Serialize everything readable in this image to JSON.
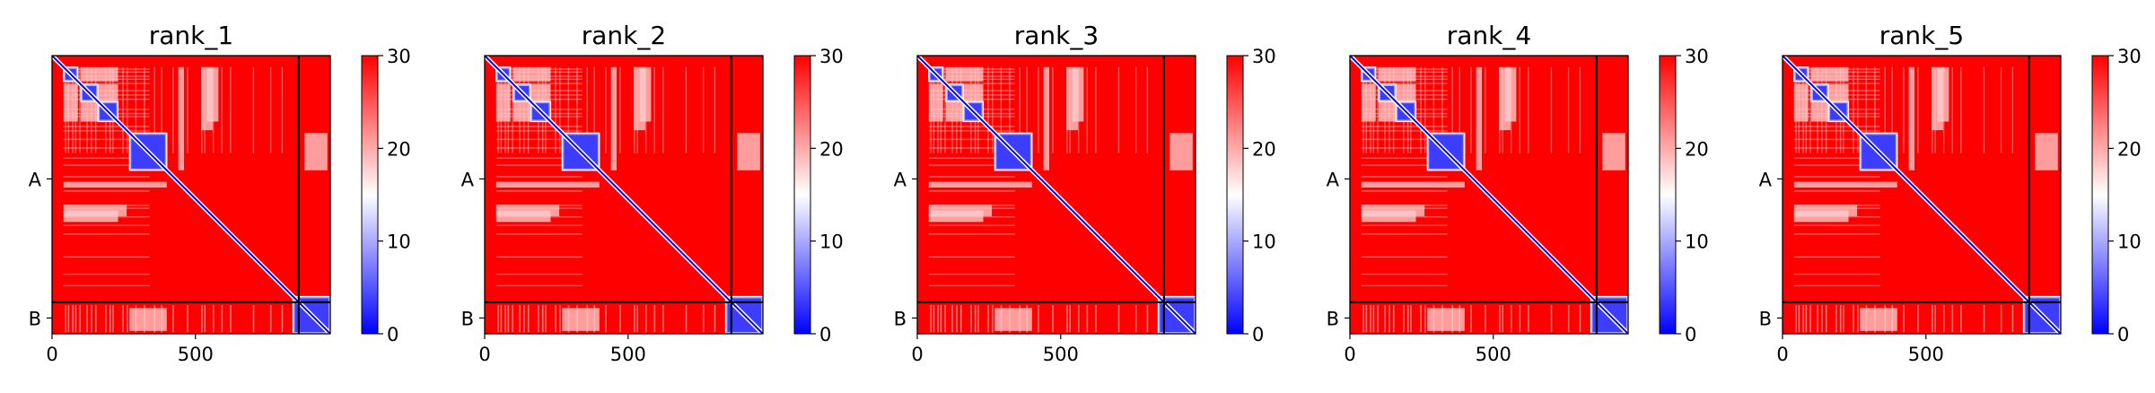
{
  "figure": {
    "layout": "1 row x 5 panels, each a heatmap with its own colorbar"
  },
  "chart_data": [
    {
      "type": "heatmap",
      "title": "rank_1",
      "xticks": [
        0,
        500
      ],
      "yticks": [
        "A",
        "B"
      ],
      "xlim": [
        0,
        970
      ],
      "ylim": [
        970,
        0
      ],
      "chain_boundary": 860,
      "colorbar": {
        "range": [
          0,
          30
        ],
        "ticks": [
          0,
          10,
          20,
          30
        ],
        "colormap": "bwr"
      },
      "blocks": [
        [
          40,
          90
        ],
        [
          100,
          160
        ],
        [
          160,
          230
        ],
        [
          270,
          400
        ],
        [
          840,
          970
        ]
      ]
    },
    {
      "type": "heatmap",
      "title": "rank_2",
      "xticks": [
        0,
        500
      ],
      "yticks": [
        "A",
        "B"
      ],
      "xlim": [
        0,
        970
      ],
      "ylim": [
        970,
        0
      ],
      "chain_boundary": 860,
      "colorbar": {
        "range": [
          0,
          30
        ],
        "ticks": [
          0,
          10,
          20,
          30
        ],
        "colormap": "bwr"
      },
      "blocks": [
        [
          40,
          90
        ],
        [
          100,
          160
        ],
        [
          160,
          230
        ],
        [
          270,
          400
        ],
        [
          840,
          970
        ]
      ]
    },
    {
      "type": "heatmap",
      "title": "rank_3",
      "xticks": [
        0,
        500
      ],
      "yticks": [
        "A",
        "B"
      ],
      "xlim": [
        0,
        970
      ],
      "ylim": [
        970,
        0
      ],
      "chain_boundary": 860,
      "colorbar": {
        "range": [
          0,
          30
        ],
        "ticks": [
          0,
          10,
          20,
          30
        ],
        "colormap": "bwr"
      },
      "blocks": [
        [
          40,
          90
        ],
        [
          100,
          160
        ],
        [
          160,
          230
        ],
        [
          270,
          400
        ],
        [
          840,
          970
        ]
      ]
    },
    {
      "type": "heatmap",
      "title": "rank_4",
      "xticks": [
        0,
        500
      ],
      "yticks": [
        "A",
        "B"
      ],
      "xlim": [
        0,
        970
      ],
      "ylim": [
        970,
        0
      ],
      "chain_boundary": 860,
      "colorbar": {
        "range": [
          0,
          30
        ],
        "ticks": [
          0,
          10,
          20,
          30
        ],
        "colormap": "bwr"
      },
      "blocks": [
        [
          40,
          90
        ],
        [
          100,
          160
        ],
        [
          160,
          230
        ],
        [
          270,
          400
        ],
        [
          840,
          970
        ]
      ]
    },
    {
      "type": "heatmap",
      "title": "rank_5",
      "xticks": [
        0,
        500
      ],
      "yticks": [
        "A",
        "B"
      ],
      "xlim": [
        0,
        970
      ],
      "ylim": [
        970,
        0
      ],
      "chain_boundary": 860,
      "colorbar": {
        "range": [
          0,
          30
        ],
        "ticks": [
          0,
          10,
          20,
          30
        ],
        "colormap": "bwr"
      },
      "blocks": [
        [
          40,
          90
        ],
        [
          100,
          160
        ],
        [
          160,
          230
        ],
        [
          270,
          400
        ],
        [
          840,
          970
        ]
      ]
    }
  ],
  "colors": {
    "background_red": "#ff0000",
    "low_blue": "#1a1aff",
    "mid_white": "#ffffff",
    "frame": "#000000"
  }
}
